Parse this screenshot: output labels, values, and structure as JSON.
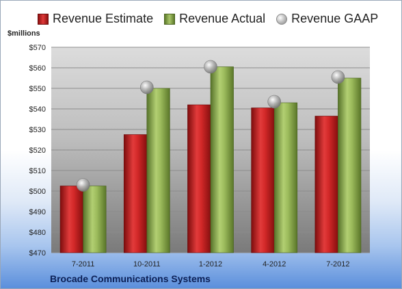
{
  "chart_data": {
    "type": "bar",
    "categories": [
      "7-2011",
      "10-2011",
      "1-2012",
      "4-2012",
      "7-2012"
    ],
    "series": [
      {
        "name": "Revenue Estimate",
        "values": [
          502.5,
          527.5,
          542,
          540.5,
          536.5
        ],
        "color": "#c0201f"
      },
      {
        "name": "Revenue Actual",
        "values": [
          502.5,
          550,
          560.5,
          543,
          555
        ],
        "color": "#8aaa4a"
      },
      {
        "name": "Revenue GAAP",
        "values": [
          503,
          550.5,
          560.5,
          543.5,
          555.5
        ],
        "color": "#b0b0b0"
      }
    ],
    "y_unit_label": "$millions",
    "ylim": [
      470,
      570
    ],
    "yticks": [
      470,
      480,
      490,
      500,
      510,
      520,
      530,
      540,
      550,
      560,
      570
    ],
    "ytick_labels": [
      "$470",
      "$480",
      "$490",
      "$500",
      "$510",
      "$520",
      "$530",
      "$540",
      "$550",
      "$560",
      "$570"
    ],
    "legend_position": "top",
    "grid": true,
    "footer": "Brocade Communications Systems"
  }
}
